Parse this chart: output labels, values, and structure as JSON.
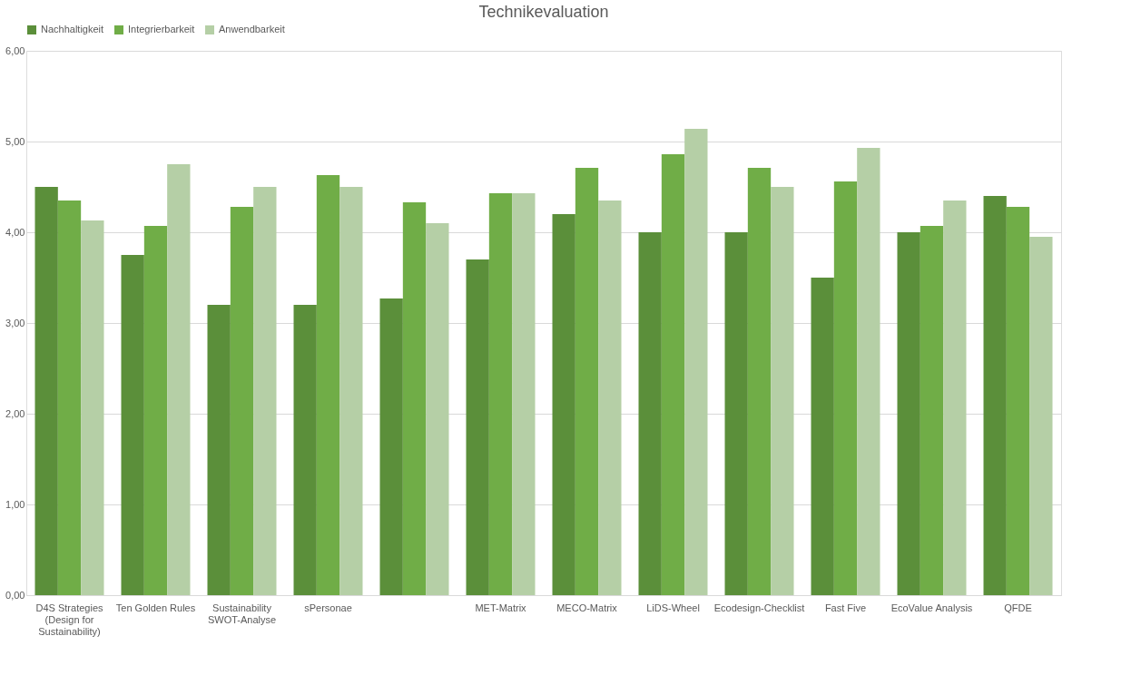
{
  "chart_data": {
    "type": "bar",
    "title": "Technikevaluation",
    "categories": [
      "D4S Strategies (Design for Sustainability)",
      "Ten Golden Rules",
      "Sustainability SWOT-Analyse",
      "sPersonae",
      null,
      "MET-Matrix",
      "MECO-Matrix",
      "LiDS-Wheel",
      "Ecodesign-Checklist",
      "Fast Five",
      "EcoValue Analysis",
      "QFDE"
    ],
    "series": [
      {
        "name": "Nachhaltigkeit",
        "color": "#5b8f3a",
        "values": [
          4.5,
          3.75,
          3.2,
          3.2,
          3.27,
          3.7,
          4.2,
          4.0,
          4.0,
          3.5,
          4.0,
          4.4
        ]
      },
      {
        "name": "Integrierbarkeit",
        "color": "#70ad47",
        "values": [
          4.35,
          4.07,
          4.28,
          4.63,
          4.33,
          4.43,
          4.71,
          4.86,
          4.71,
          4.56,
          4.07,
          4.28
        ]
      },
      {
        "name": "Anwendbarkeit",
        "color": "#b5cfa6",
        "values": [
          4.13,
          4.75,
          4.5,
          4.5,
          4.1,
          4.43,
          4.35,
          5.14,
          4.5,
          4.93,
          4.35,
          3.95
        ]
      }
    ],
    "ylim": [
      0,
      6
    ],
    "yticks": [
      {
        "value": 0,
        "label": "0,00"
      },
      {
        "value": 1,
        "label": "1,00"
      },
      {
        "value": 2,
        "label": "2,00"
      },
      {
        "value": 3,
        "label": "3,00"
      },
      {
        "value": 4,
        "label": "4,00"
      },
      {
        "value": 5,
        "label": "5,00"
      },
      {
        "value": 6,
        "label": "6,00"
      }
    ],
    "grid": "y",
    "legend": "top"
  }
}
